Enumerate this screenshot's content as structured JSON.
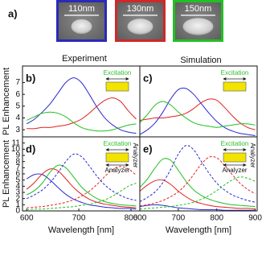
{
  "panel_a": {
    "label": "a)",
    "images": [
      {
        "label": "110nm",
        "color": "#2a2ab8"
      },
      {
        "label": "130nm",
        "color": "#d02828"
      },
      {
        "label": "150nm",
        "color": "#22c022"
      }
    ]
  },
  "column_titles": [
    "Experiment",
    "Simulation"
  ],
  "chart_data": [
    {
      "type": "line",
      "panel_label": "b)",
      "ylabel": "PL Enhancement",
      "x": [
        600,
        615,
        630,
        645,
        660,
        675,
        690,
        705,
        720,
        735,
        750,
        765,
        780,
        795,
        810
      ],
      "xlim": [
        592,
        817
      ],
      "ylim": [
        2.4,
        8.4
      ],
      "yticks": [
        3,
        4,
        5,
        6,
        7
      ],
      "inset": {
        "top": "Excitation"
      },
      "series": [
        {
          "color": "#2a2ad0",
          "dashed": false,
          "values": [
            3.5,
            3.9,
            4.5,
            5.2,
            6.1,
            7.0,
            7.4,
            7.0,
            6.0,
            4.9,
            4.0,
            3.4,
            3.0,
            2.8,
            2.7
          ]
        },
        {
          "color": "#e02020",
          "dashed": false,
          "values": [
            3.1,
            3.1,
            3.2,
            3.2,
            3.3,
            3.4,
            3.6,
            3.9,
            4.4,
            5.0,
            5.5,
            5.7,
            5.4,
            4.6,
            3.9
          ]
        },
        {
          "color": "#22c022",
          "dashed": false,
          "values": [
            3.8,
            4.1,
            4.4,
            4.5,
            4.4,
            4.1,
            3.6,
            3.2,
            3.0,
            2.9,
            2.9,
            3.0,
            3.2,
            3.4,
            3.5
          ]
        }
      ]
    },
    {
      "type": "line",
      "panel_label": "c)",
      "x": [
        600,
        620,
        640,
        660,
        680,
        700,
        720,
        740,
        760,
        780,
        800,
        820,
        840,
        860,
        880,
        900
      ],
      "xlim": [
        600,
        905
      ],
      "ylim": [
        2.4,
        8.4
      ],
      "inset": {
        "top": "Excitation"
      },
      "series": [
        {
          "color": "#2a2ad0",
          "dashed": false,
          "values": [
            2.6,
            3.0,
            3.6,
            4.5,
            5.6,
            6.4,
            6.5,
            6.0,
            5.2,
            4.4,
            3.7,
            3.2,
            2.9,
            2.7,
            2.6,
            2.5
          ]
        },
        {
          "color": "#e02020",
          "dashed": false,
          "values": [
            3.8,
            3.9,
            4.0,
            4.0,
            4.1,
            4.2,
            4.4,
            4.8,
            5.3,
            5.6,
            5.5,
            4.9,
            4.2,
            3.6,
            3.2,
            3.0
          ]
        },
        {
          "color": "#22c022",
          "dashed": false,
          "values": [
            3.6,
            4.3,
            5.1,
            5.4,
            5.1,
            4.5,
            4.0,
            3.6,
            3.4,
            3.3,
            3.2,
            3.3,
            3.4,
            3.5,
            3.5,
            3.4
          ]
        }
      ]
    },
    {
      "type": "line",
      "panel_label": "d)",
      "ylabel": "PL Enhancement",
      "xlabel": "Wavelength [nm]",
      "x": [
        600,
        615,
        630,
        645,
        660,
        675,
        690,
        705,
        720,
        735,
        750,
        765,
        780,
        795,
        810
      ],
      "xlim": [
        592,
        817
      ],
      "xticks": [
        600,
        700,
        800
      ],
      "ylim": [
        0,
        12
      ],
      "yticks": [
        0,
        1,
        2,
        3,
        4,
        5,
        6,
        7,
        8,
        9,
        10,
        11
      ],
      "inset": {
        "top": "Excitation",
        "bottom": "Analyzer",
        "side": "Analyzer"
      },
      "series": [
        {
          "color": "#2a2ad0",
          "dashed": false,
          "values": [
            5.2,
            5.9,
            5.9,
            5.0,
            3.8,
            2.7,
            1.9,
            1.4,
            1.0,
            0.8,
            0.6,
            0.5,
            0.4,
            0.4,
            0.3
          ]
        },
        {
          "color": "#e02020",
          "dashed": false,
          "values": [
            3.5,
            4.6,
            6.0,
            6.8,
            6.5,
            5.2,
            3.8,
            2.7,
            1.9,
            1.4,
            1.1,
            0.9,
            0.7,
            0.6,
            0.5
          ]
        },
        {
          "color": "#22c022",
          "dashed": false,
          "values": [
            2.6,
            3.3,
            4.5,
            6.3,
            7.4,
            7.0,
            5.5,
            3.9,
            2.8,
            2.0,
            1.5,
            1.2,
            1.0,
            0.9,
            0.8
          ]
        },
        {
          "color": "#2a2ad0",
          "dashed": true,
          "values": [
            2.0,
            2.6,
            3.4,
            4.6,
            6.2,
            8.0,
            9.2,
            8.8,
            7.3,
            5.6,
            4.2,
            3.2,
            2.5,
            2.0,
            1.7
          ]
        },
        {
          "color": "#e02020",
          "dashed": true,
          "values": [
            0.5,
            0.6,
            0.7,
            0.9,
            1.1,
            1.4,
            1.8,
            2.4,
            3.2,
            4.3,
            5.6,
            6.7,
            7.2,
            6.8,
            5.8
          ]
        },
        {
          "color": "#22c022",
          "dashed": true,
          "values": [
            0.2,
            0.3,
            0.3,
            0.4,
            0.5,
            0.6,
            0.7,
            0.9,
            1.1,
            1.4,
            1.8,
            2.4,
            3.2,
            4.0,
            4.5
          ]
        }
      ]
    },
    {
      "type": "line",
      "panel_label": "e)",
      "xlabel": "Wavelength [nm]",
      "x": [
        600,
        620,
        640,
        660,
        680,
        700,
        720,
        740,
        760,
        780,
        800,
        820,
        840,
        860,
        880,
        900
      ],
      "xlim": [
        600,
        905
      ],
      "xticks": [
        600,
        700,
        800,
        900
      ],
      "ylim": [
        0,
        12
      ],
      "inset": {
        "top": "Excitation",
        "bottom": "Analyzer",
        "side": "Analyzer"
      },
      "series": [
        {
          "color": "#2a2ad0",
          "dashed": false,
          "values": [
            0.7,
            0.9,
            1.0,
            0.9,
            0.7,
            0.5,
            0.4,
            0.3,
            0.2,
            0.2,
            0.2,
            0.1,
            0.1,
            0.1,
            0.1,
            0.1
          ]
        },
        {
          "color": "#e02020",
          "dashed": false,
          "values": [
            3.2,
            4.2,
            4.9,
            5.0,
            4.3,
            3.2,
            2.3,
            1.6,
            1.2,
            0.9,
            0.7,
            0.6,
            0.5,
            0.4,
            0.4,
            0.3
          ]
        },
        {
          "color": "#22c022",
          "dashed": false,
          "values": [
            3.8,
            5.2,
            7.0,
            8.4,
            8.2,
            6.6,
            4.8,
            3.4,
            2.5,
            1.9,
            1.5,
            1.2,
            1.0,
            0.9,
            0.8,
            0.7
          ]
        },
        {
          "color": "#2a2ad0",
          "dashed": true,
          "values": [
            1.5,
            2.2,
            3.1,
            4.6,
            6.7,
            9.2,
            10.6,
            9.9,
            8.0,
            6.1,
            4.5,
            3.4,
            2.6,
            2.1,
            1.7,
            1.4
          ]
        },
        {
          "color": "#e02020",
          "dashed": true,
          "values": [
            0.8,
            1.0,
            1.3,
            1.7,
            2.3,
            3.1,
            4.3,
            5.9,
            7.6,
            8.7,
            8.6,
            7.4,
            5.9,
            4.5,
            3.5,
            2.8
          ]
        },
        {
          "color": "#22c022",
          "dashed": true,
          "values": [
            0.3,
            0.4,
            0.5,
            0.6,
            0.7,
            0.9,
            1.1,
            1.4,
            1.9,
            2.5,
            3.3,
            4.2,
            5.0,
            5.5,
            5.3,
            4.8
          ]
        }
      ]
    }
  ]
}
